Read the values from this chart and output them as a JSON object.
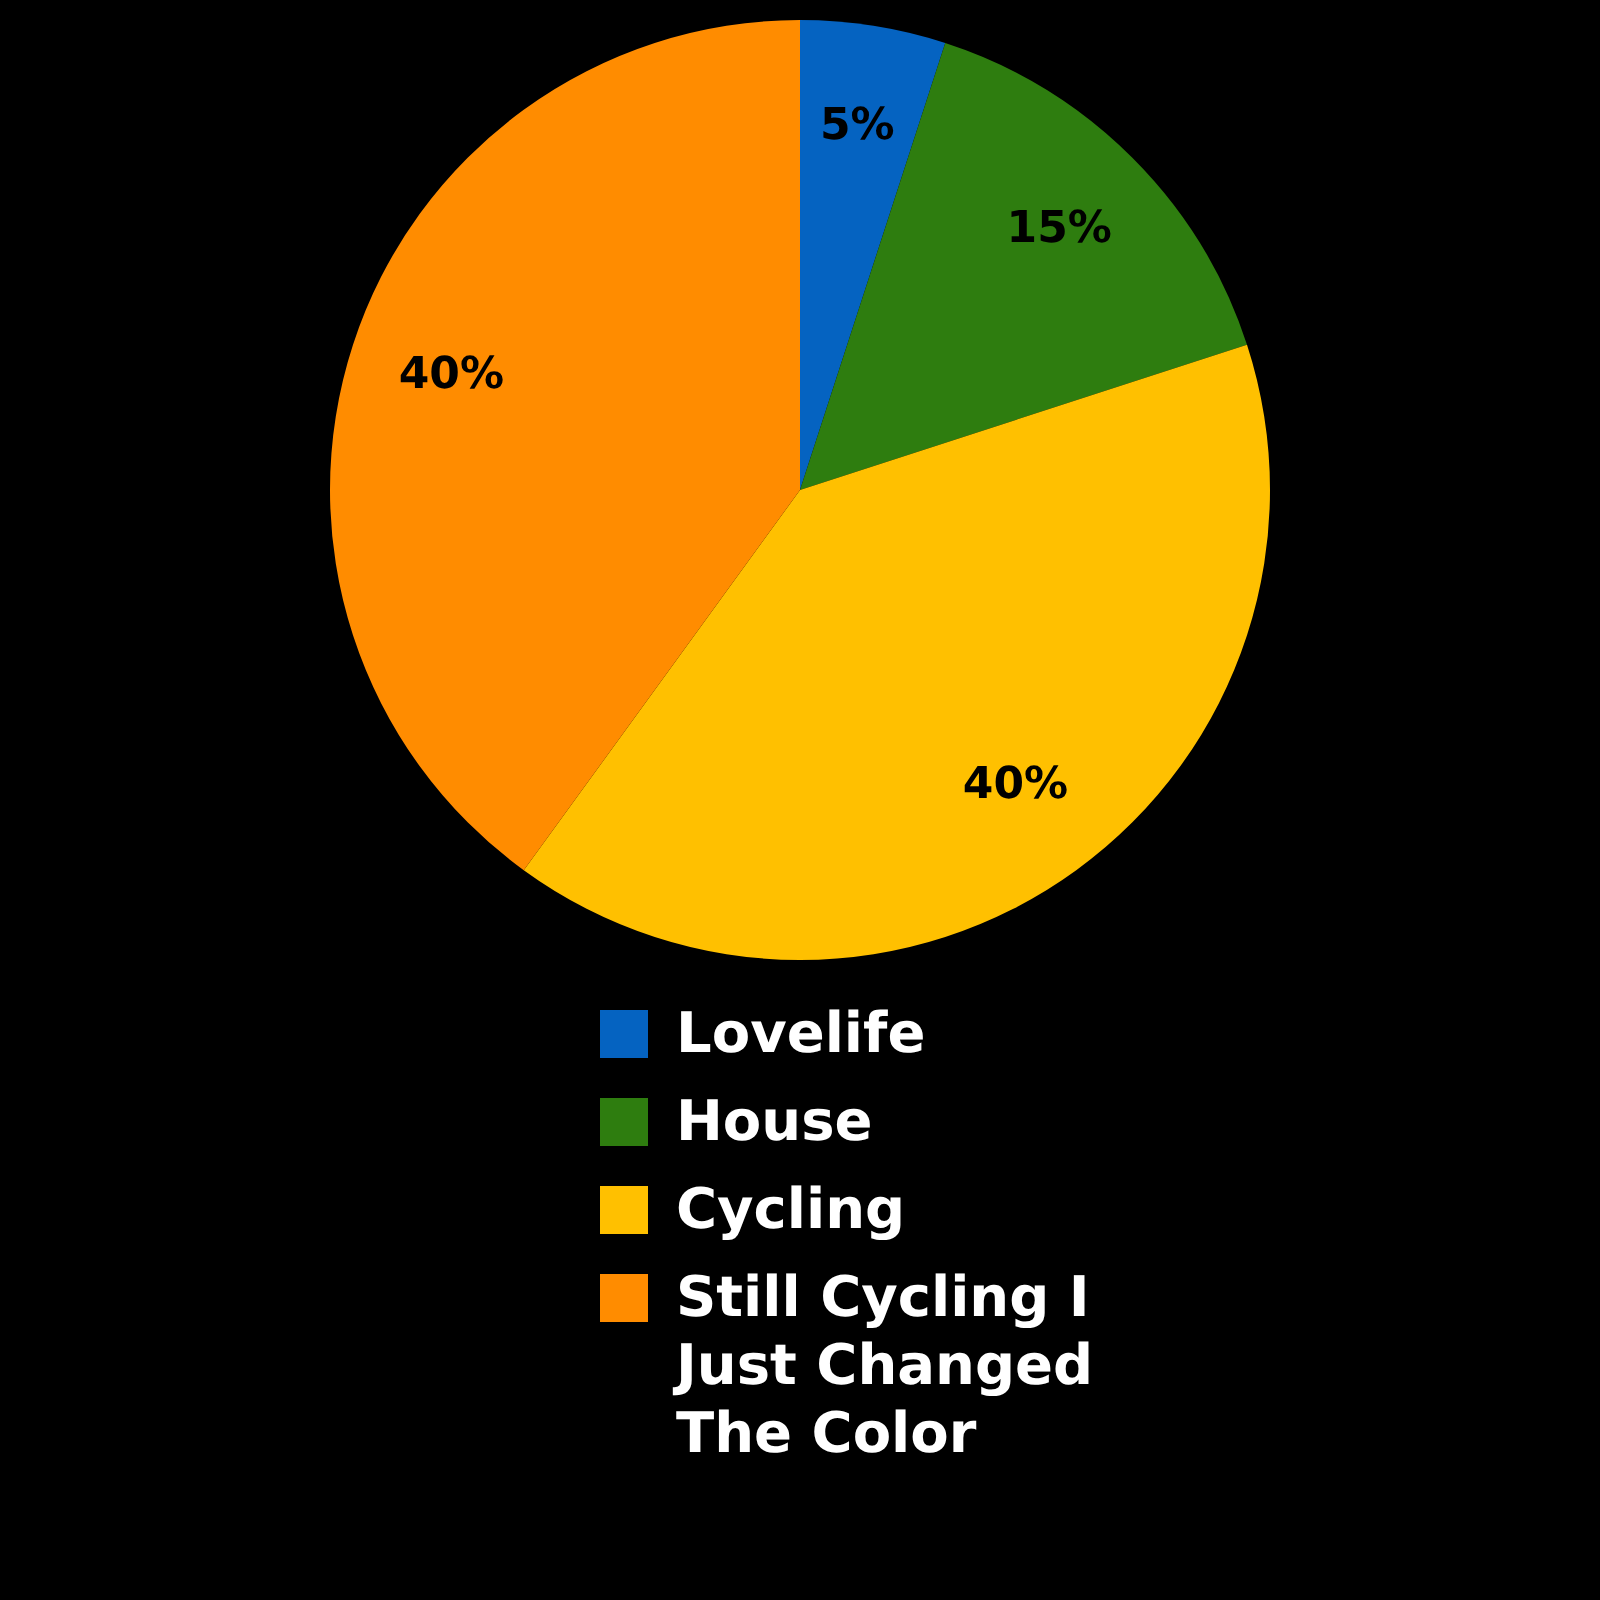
{
  "chart_data": {
    "type": "pie",
    "categories": [
      "Lovelife",
      "House",
      "Cycling",
      "Still Cycling I Just Changed The Color"
    ],
    "values": [
      5,
      15,
      40,
      40
    ],
    "colors": [
      "#0563c1",
      "#2e7d0f",
      "#ffc000",
      "#ff8c00"
    ],
    "value_labels": [
      "5%",
      "15%",
      "40%",
      "40%"
    ],
    "legend": "bottom"
  }
}
